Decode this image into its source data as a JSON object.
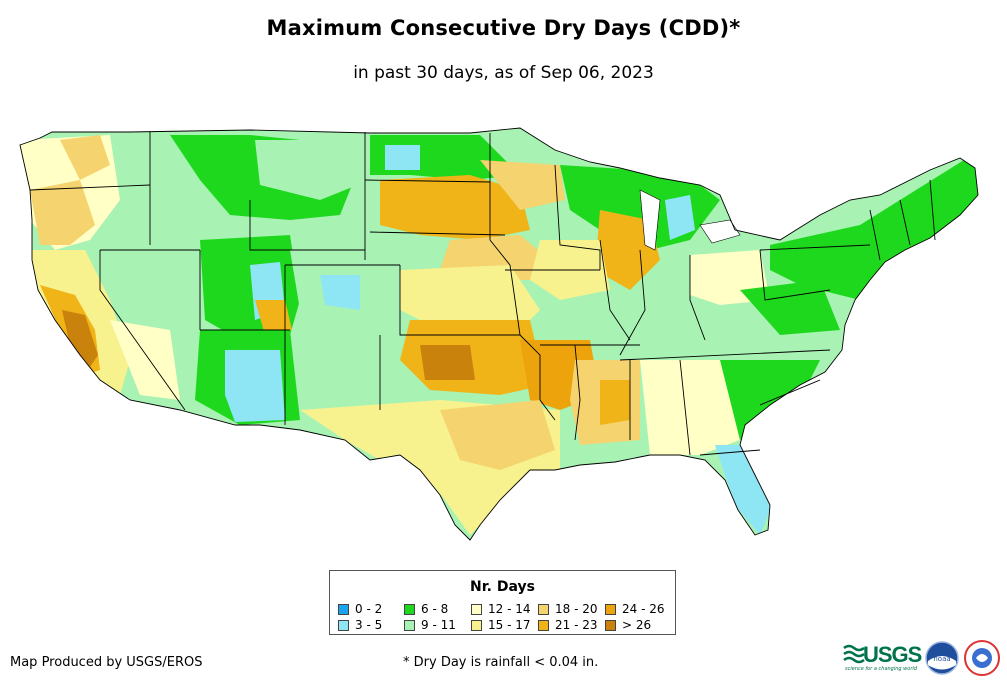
{
  "title": "Maximum Consecutive Dry Days (CDD)*",
  "subtitle": "in past 30 days, as of Sep 06, 2023",
  "legend": {
    "title": "Nr. Days",
    "items": [
      {
        "label": "0 - 2",
        "color": "#1aa3f0"
      },
      {
        "label": "3 - 5",
        "color": "#8ee6f5"
      },
      {
        "label": "6 - 8",
        "color": "#1ed81e"
      },
      {
        "label": "9 - 11",
        "color": "#a8f2b4"
      },
      {
        "label": "12 - 14",
        "color": "#ffffc6"
      },
      {
        "label": "15 - 17",
        "color": "#f7f28e"
      },
      {
        "label": "18 - 20",
        "color": "#f5d36e"
      },
      {
        "label": "21 - 23",
        "color": "#f0b418"
      },
      {
        "label": "24 - 26",
        "color": "#eda40c"
      },
      {
        "label": "> 26",
        "color": "#c9820c"
      }
    ]
  },
  "credit": "Map Produced by USGS/EROS",
  "footnote": "* Dry Day is rainfall < 0.04 in.",
  "logos": {
    "usgs": "USGS",
    "usgs_tagline": "science for a changing world",
    "noaa_label": "noaa"
  }
}
